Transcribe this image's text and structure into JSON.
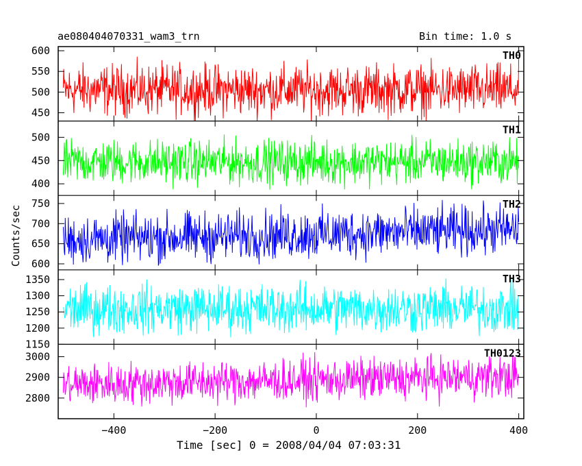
{
  "header": {
    "title": "ae080404070331_wam3_trn",
    "bin_time": "Bin time: 1.0 s"
  },
  "chart_data": {
    "type": "line",
    "xlabel": "Time [sec] 0 = 2008/04/04 07:03:31",
    "ylabel": "Counts/sec",
    "xlim": [
      -510,
      410
    ],
    "x_range": [
      -500,
      400
    ],
    "x_ticks": [
      -400,
      -200,
      0,
      200,
      400
    ],
    "x_tick_labels": [
      "−400",
      "−200",
      "0",
      "200",
      "400"
    ],
    "panels": [
      {
        "name": "TH0",
        "color": "#ff0000",
        "ylim": [
          430,
          610
        ],
        "mean": 505,
        "amplitude": 90,
        "y_ticks": [
          450,
          500,
          550,
          600
        ],
        "y_tick_labels": [
          "450",
          "500",
          "550",
          "600"
        ]
      },
      {
        "name": "TH1",
        "color": "#00ff00",
        "ylim": [
          375,
          535
        ],
        "mean": 447,
        "amplitude": 70,
        "y_ticks": [
          400,
          450,
          500
        ],
        "y_tick_labels": [
          "400",
          "450",
          "500"
        ]
      },
      {
        "name": "TH2",
        "color": "#0000ff",
        "ylim": [
          585,
          770
        ],
        "mean": 660,
        "amplitude": 90,
        "trend": 25,
        "y_ticks": [
          600,
          650,
          700,
          750
        ],
        "y_tick_labels": [
          "600",
          "650",
          "700",
          "750"
        ]
      },
      {
        "name": "TH3",
        "color": "#00ffff",
        "ylim": [
          1150,
          1380
        ],
        "mean": 1260,
        "amplitude": 110,
        "y_ticks": [
          1150,
          1200,
          1250,
          1300,
          1350
        ],
        "y_tick_labels": [
          "1150",
          "1200",
          "1250",
          "1300",
          "1350"
        ]
      },
      {
        "name": "TH0123",
        "color": "#ff00ff",
        "ylim": [
          2700,
          3060
        ],
        "mean": 2865,
        "amplitude": 150,
        "trend": 40,
        "y_ticks": [
          2800,
          2900,
          3000
        ],
        "y_tick_labels": [
          "2800",
          "2900",
          "3000"
        ]
      }
    ]
  }
}
